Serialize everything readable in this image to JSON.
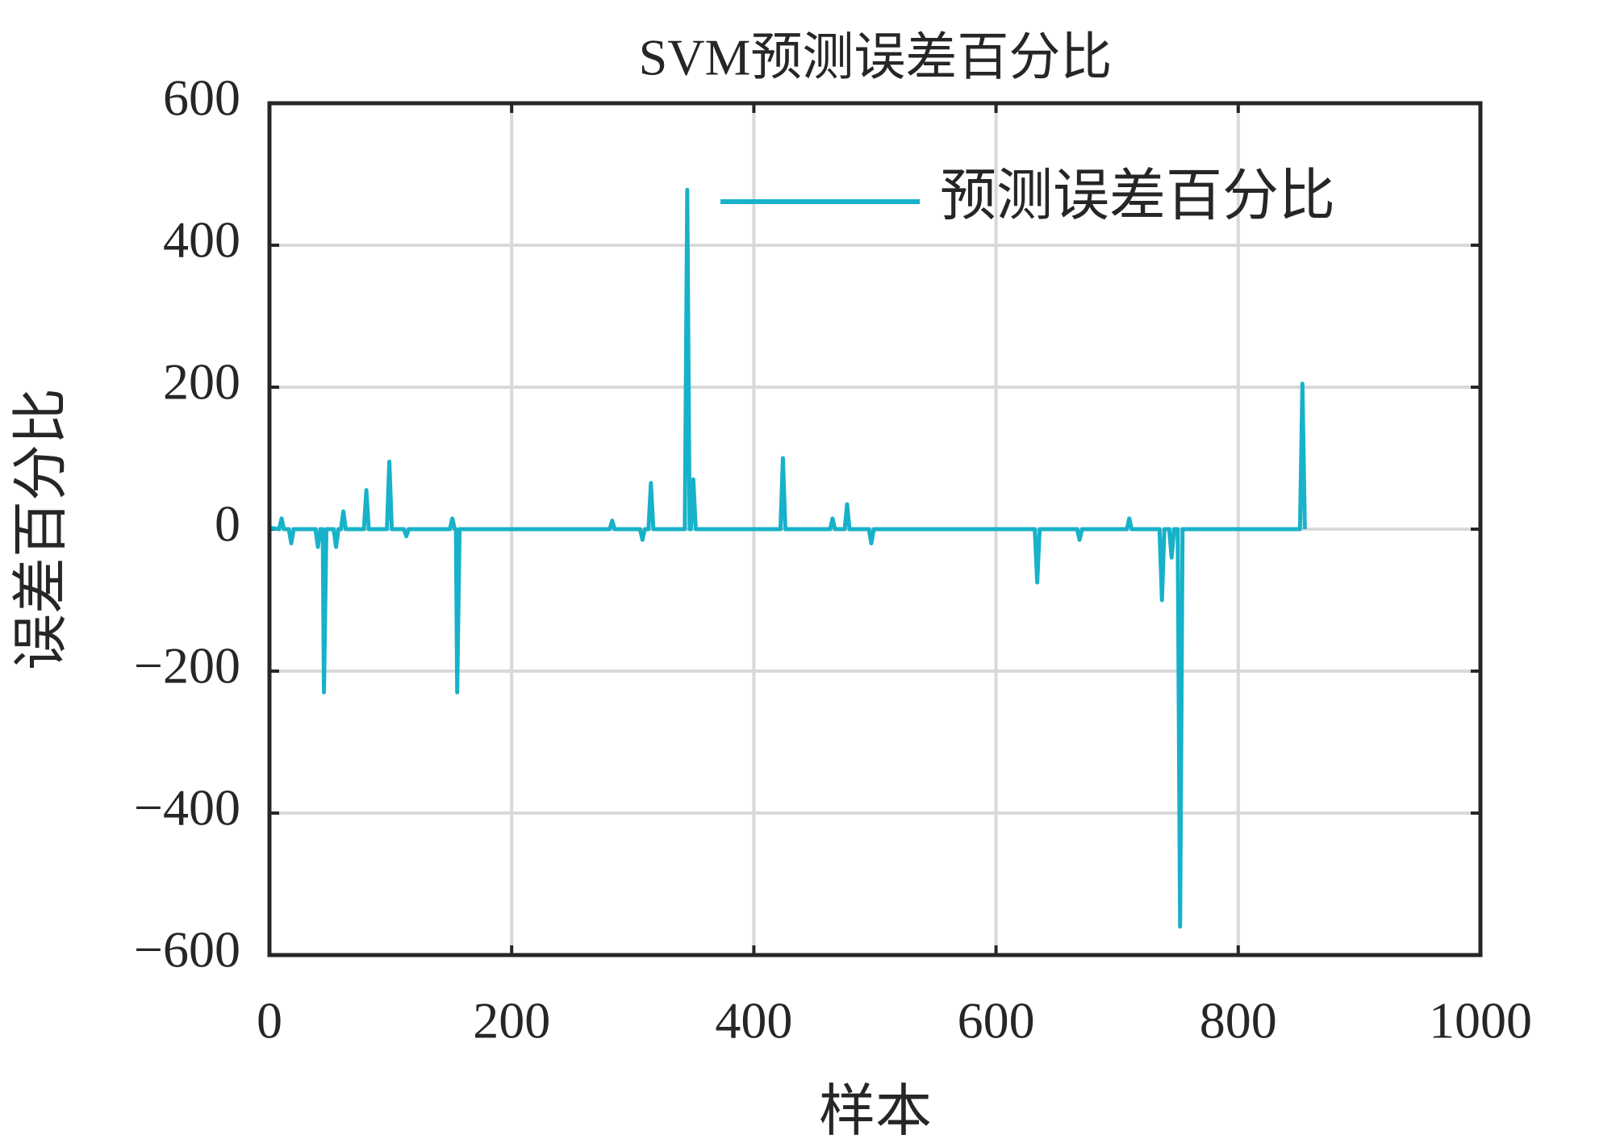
{
  "chart_data": {
    "type": "line",
    "title": "SVM预测误差百分比",
    "xlabel": "样本",
    "ylabel": "误差百分比",
    "x": [
      0,
      8,
      10,
      12,
      16,
      18,
      20,
      38,
      40,
      42,
      44,
      45,
      47,
      53,
      55,
      57,
      59,
      61,
      63,
      78,
      80,
      82,
      97,
      99,
      101,
      111,
      113,
      115,
      149,
      151,
      153,
      154,
      155,
      157,
      200,
      281,
      283,
      285,
      306,
      308,
      310,
      313,
      315,
      317,
      343,
      345,
      347,
      348,
      350,
      352,
      422,
      424,
      426,
      463,
      465,
      467,
      475,
      477,
      479,
      495,
      497,
      499,
      600,
      632,
      634,
      636,
      667,
      669,
      671,
      708,
      710,
      712,
      735,
      737,
      739,
      743,
      745,
      747,
      750,
      752,
      754,
      800,
      851,
      853,
      855
    ],
    "series": [
      {
        "name": "预测误差百分比",
        "color": "#17b2c9",
        "values": [
          2,
          0,
          15,
          0,
          0,
          -20,
          0,
          0,
          -25,
          0,
          0,
          -230,
          0,
          0,
          -25,
          0,
          0,
          25,
          0,
          0,
          55,
          0,
          0,
          95,
          0,
          0,
          -10,
          0,
          0,
          15,
          0,
          0,
          -230,
          0,
          0,
          0,
          12,
          0,
          0,
          -15,
          0,
          0,
          65,
          0,
          0,
          478,
          0,
          0,
          70,
          0,
          0,
          100,
          0,
          0,
          15,
          0,
          0,
          35,
          0,
          0,
          -20,
          0,
          0,
          0,
          -75,
          0,
          0,
          -15,
          0,
          0,
          15,
          0,
          0,
          -100,
          0,
          0,
          -40,
          0,
          0,
          -560,
          0,
          0,
          0,
          205,
          0
        ]
      }
    ],
    "xlim": [
      0,
      1000
    ],
    "xticks": [
      0,
      200,
      400,
      600,
      800,
      1000
    ],
    "ylim": [
      -600,
      600
    ],
    "yticks": [
      {
        "value": -600,
        "label": "−600"
      },
      {
        "value": -400,
        "label": "−400"
      },
      {
        "value": -200,
        "label": "−200"
      },
      0,
      200,
      400,
      600
    ],
    "grid": true,
    "legend": "upper right"
  }
}
